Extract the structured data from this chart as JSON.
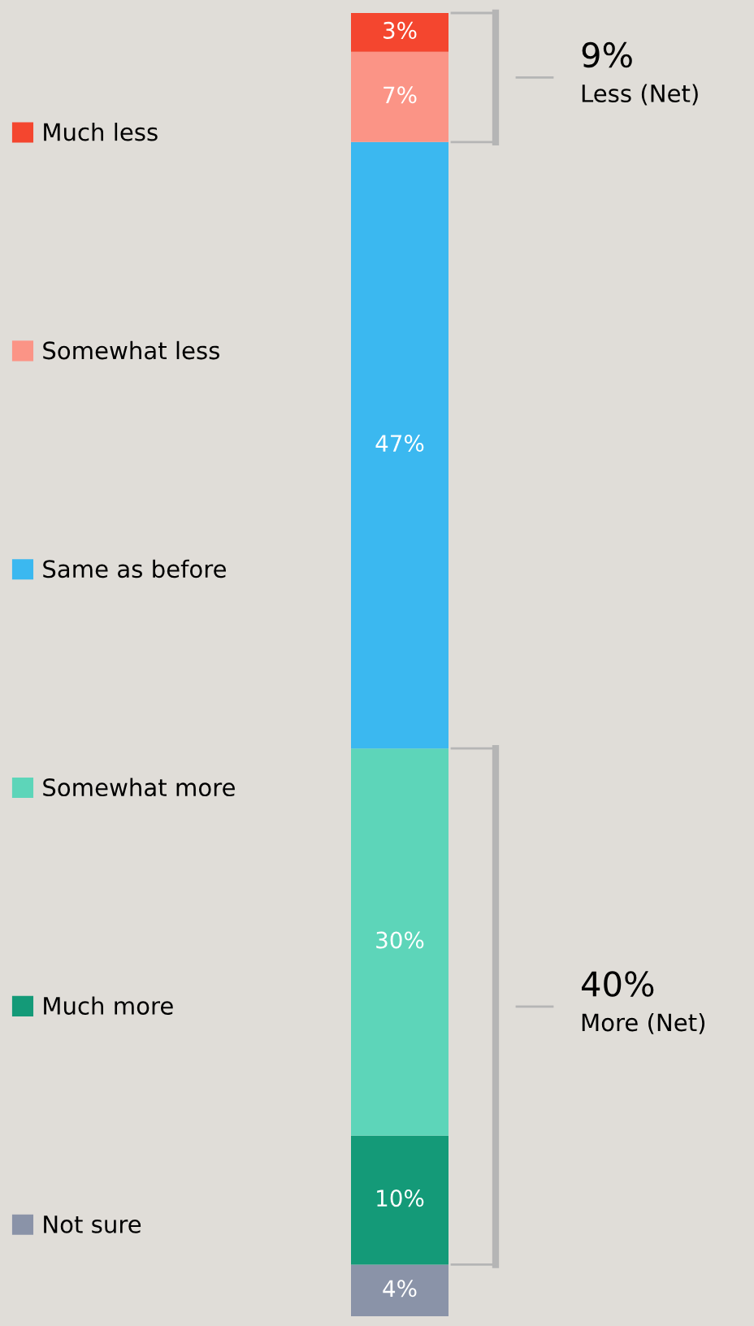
{
  "chart_data": {
    "type": "bar",
    "stacked": true,
    "categories": [
      null
    ],
    "legend": "left",
    "data_labels": false,
    "series": [
      {
        "name": "Not sure",
        "color": "#8a93a8",
        "values": [
          4
        ],
        "value_labels": [
          "4%"
        ]
      },
      {
        "name": "Much more",
        "color": "#149a78",
        "values": [
          10
        ],
        "value_labels": [
          "10%"
        ]
      },
      {
        "name": "Somewhat more",
        "color": "#5dd5b9",
        "values": [
          30
        ],
        "value_labels": [
          "30%"
        ]
      },
      {
        "name": "Same as before",
        "color": "#3bb8f0",
        "values": [
          47
        ],
        "value_labels": [
          "47%"
        ]
      },
      {
        "name": "Somewhat less",
        "color": "#fb9486",
        "values": [
          7
        ],
        "value_labels": [
          "7%"
        ]
      },
      {
        "name": "Much less",
        "color": "#f4462f",
        "values": [
          3
        ],
        "value_labels": [
          "3%"
        ]
      }
    ],
    "annotations": [
      "9%",
      "Less (Net)",
      "40%",
      "More (Net)"
    ]
  }
}
